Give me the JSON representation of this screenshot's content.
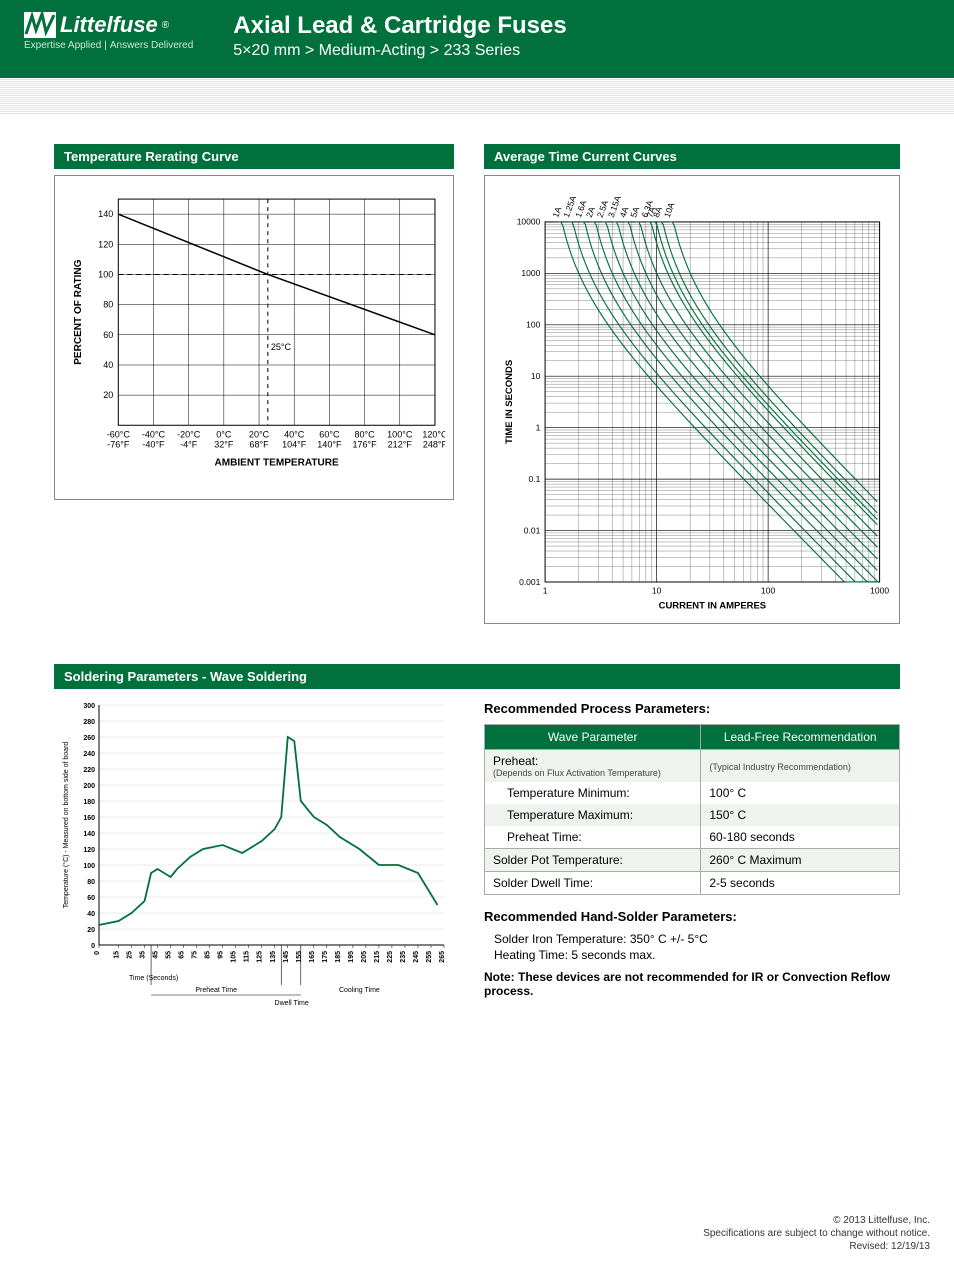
{
  "header": {
    "logo_name": "Littelfuse",
    "tagline_left": "Expertise Applied",
    "tagline_right": "Answers Delivered",
    "title": "Axial Lead & Cartridge Fuses",
    "subtitle": "5×20 mm > Medium-Acting > 233 Series"
  },
  "sections": {
    "rerating": "Temperature Rerating Curve",
    "timecurrent": "Average Time Current Curves",
    "soldering": "Soldering Parameters - Wave Soldering"
  },
  "rerating_chart": {
    "type": "line",
    "y_label": "PERCENT OF RATING",
    "x_label": "AMBIENT TEMPERATURE",
    "y_ticks": [
      20,
      40,
      60,
      80,
      100,
      120,
      140
    ],
    "x_ticks_c": [
      "-60°C",
      "-40°C",
      "-20°C",
      "0°C",
      "20°C",
      "40°C",
      "60°C",
      "80°C",
      "100°C",
      "120°C"
    ],
    "x_ticks_f": [
      "-76°F",
      "-40°F",
      "-4°F",
      "32°F",
      "68°F",
      "104°F",
      "140°F",
      "176°F",
      "212°F",
      "248°F"
    ],
    "xlim": [
      -60,
      120
    ],
    "ylim": [
      0,
      150
    ],
    "marker_temp": 25,
    "marker_label": "25°C",
    "dash_y": 100,
    "series": [
      {
        "x": -60,
        "y": 140
      },
      {
        "x": 25,
        "y": 100
      },
      {
        "x": 120,
        "y": 60
      }
    ],
    "line_color": "#000000",
    "grid_color": "#000000",
    "dash_color": "#000000",
    "marker_color": "#000000"
  },
  "timecurrent_chart": {
    "type": "line",
    "y_label": "TIME IN SECONDS",
    "x_label": "CURRENT IN AMPERES",
    "x_log_range": [
      1,
      1000
    ],
    "y_log_range": [
      0.001,
      10000
    ],
    "x_ticks": [
      "1",
      "10",
      "100",
      "1000"
    ],
    "y_ticks": [
      "0.001",
      "0.01",
      "0.1",
      "1",
      "10",
      "100",
      "1000",
      "10000"
    ],
    "series_labels": [
      "1A",
      "1.25A",
      "1.6A",
      "2A",
      "2.5A",
      "3.15A",
      "4A",
      "5A",
      "6.3A",
      "7A",
      "8A",
      "10A"
    ],
    "ratings": [
      1,
      1.25,
      1.6,
      2,
      2.5,
      3.15,
      4,
      5,
      6.3,
      7,
      8,
      10
    ],
    "line_color": "#00703c",
    "grid_color": "#000000",
    "line_width": 1.2
  },
  "solder_profile_chart": {
    "type": "line",
    "y_label": "Temperature (°C) - Measured on bottom side of board",
    "x_label": "Time (Seconds)",
    "y_ticks": [
      0,
      20,
      40,
      60,
      80,
      100,
      120,
      140,
      160,
      180,
      200,
      220,
      240,
      260,
      280,
      300
    ],
    "x_ticks": [
      0,
      15,
      25,
      35,
      45,
      55,
      65,
      75,
      85,
      95,
      105,
      115,
      125,
      135,
      145,
      155,
      165,
      175,
      185,
      195,
      205,
      215,
      225,
      235,
      245,
      255,
      265
    ],
    "xlim": [
      0,
      265
    ],
    "ylim": [
      0,
      300
    ],
    "line_color": "#00703c",
    "grid_color": "#cccccc",
    "annotations": {
      "preheat": "Preheat Time",
      "dwell": "Dwell Time",
      "cooling": "Cooling Time"
    },
    "data": [
      {
        "x": 0,
        "y": 25
      },
      {
        "x": 15,
        "y": 30
      },
      {
        "x": 25,
        "y": 40
      },
      {
        "x": 35,
        "y": 55
      },
      {
        "x": 40,
        "y": 90
      },
      {
        "x": 45,
        "y": 95
      },
      {
        "x": 55,
        "y": 85
      },
      {
        "x": 60,
        "y": 95
      },
      {
        "x": 70,
        "y": 110
      },
      {
        "x": 80,
        "y": 120
      },
      {
        "x": 95,
        "y": 125
      },
      {
        "x": 110,
        "y": 115
      },
      {
        "x": 125,
        "y": 130
      },
      {
        "x": 135,
        "y": 145
      },
      {
        "x": 140,
        "y": 160
      },
      {
        "x": 145,
        "y": 260
      },
      {
        "x": 150,
        "y": 255
      },
      {
        "x": 155,
        "y": 180
      },
      {
        "x": 165,
        "y": 160
      },
      {
        "x": 175,
        "y": 150
      },
      {
        "x": 185,
        "y": 135
      },
      {
        "x": 200,
        "y": 120
      },
      {
        "x": 215,
        "y": 100
      },
      {
        "x": 230,
        "y": 100
      },
      {
        "x": 245,
        "y": 90
      },
      {
        "x": 260,
        "y": 50
      }
    ]
  },
  "process_params": {
    "heading": "Recommended Process Parameters:",
    "col1": "Wave Parameter",
    "col2": "Lead-Free Recommendation",
    "rows": [
      {
        "label": "Preheat:",
        "sub": "(Depends on Flux Activation Temperature)",
        "value": "(Typical Industry Recommendation)",
        "alt": true
      },
      {
        "label": "Temperature Minimum:",
        "value": "100° C",
        "indent": true
      },
      {
        "label": "Temperature Maximum:",
        "value": "150° C",
        "indent": true,
        "alt": true
      },
      {
        "label": "Preheat Time:",
        "value": "60-180 seconds",
        "indent": true,
        "section": true
      },
      {
        "label": "Solder Pot Temperature:",
        "value": "260° C Maximum",
        "section": true,
        "alt": true
      },
      {
        "label": "Solder Dwell Time:",
        "value": "2-5 seconds",
        "section": true
      }
    ]
  },
  "hand_solder": {
    "heading": "Recommended Hand-Solder Parameters:",
    "line1": "Solder Iron Temperature: 350° C +/- 5°C",
    "line2": "Heating Time: 5 seconds max."
  },
  "note": "Note: These devices are not recommended for IR or Convection Reflow process.",
  "footer": {
    "copyright": "© 2013 Littelfuse, Inc.",
    "disclaimer": "Specifications are subject to change without notice.",
    "revised": "Revised: 12/19/13"
  },
  "colors": {
    "brand": "#00703c",
    "text": "#222222"
  }
}
